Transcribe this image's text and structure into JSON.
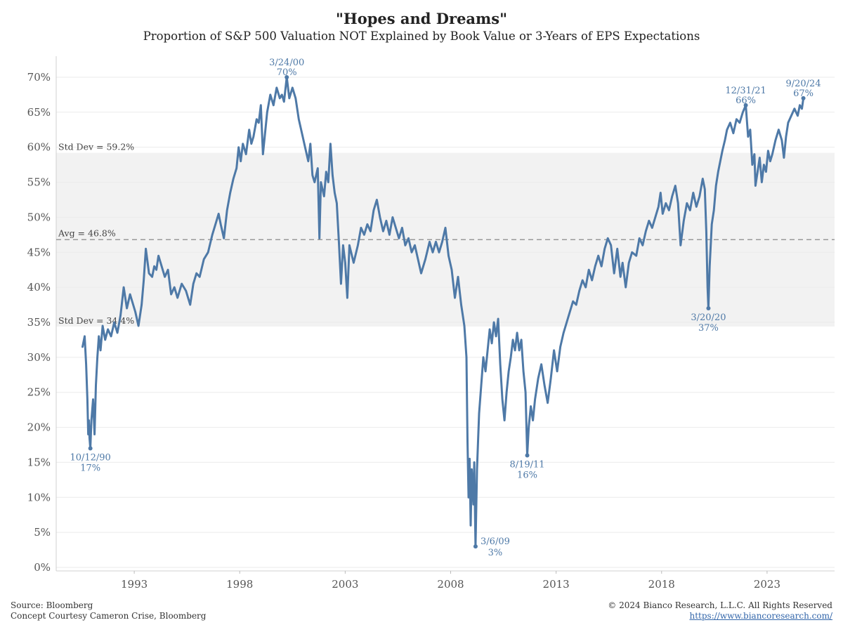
{
  "title": "\"Hopes and Dreams\"",
  "subtitle": "Proportion of S&P 500 Valuation NOT Explained by Book Value or 3-Years of EPS Expectations",
  "footer": {
    "source": "Source: Bloomberg",
    "concept": "Concept Courtesy Cameron Crise, Bloomberg",
    "copyright": "© 2024 Bianco Research, L.L.C. All Rights Reserved",
    "url": "https://www.biancoresearch.com/"
  },
  "chart_data": {
    "type": "line",
    "title": "\"Hopes and Dreams\"",
    "subtitle": "Proportion of S&P 500 Valuation NOT Explained by Book Value or 3-Years of EPS Expectations",
    "x_ticks": [
      1993,
      1998,
      2003,
      2008,
      2013,
      2018,
      2023
    ],
    "xlim": [
      1989.3,
      2026.2
    ],
    "y_ticks": [
      0,
      5,
      10,
      15,
      20,
      25,
      30,
      35,
      40,
      45,
      50,
      55,
      60,
      65,
      70
    ],
    "y_tick_labels": [
      "0%",
      "5%",
      "10%",
      "15%",
      "20%",
      "25%",
      "30%",
      "35%",
      "40%",
      "45%",
      "50%",
      "55%",
      "60%",
      "65%",
      "70%"
    ],
    "ylim": [
      -0.5,
      72
    ],
    "grid": true,
    "colors": {
      "line": "#4e79a7",
      "band": "#f2f2f2",
      "avg_line": "#999999",
      "annotation": "#4e79a7"
    },
    "reference": {
      "avg": {
        "value": 46.8,
        "label": "Avg = 46.8%"
      },
      "std_upper": {
        "value": 59.2,
        "label": "Std Dev = 59.2%"
      },
      "std_lower": {
        "value": 34.4,
        "label": "Std Dev = 34.4%"
      }
    },
    "series": [
      {
        "values": [
          [
            1990.55,
            31.5
          ],
          [
            1990.65,
            33.0
          ],
          [
            1990.72,
            29.0
          ],
          [
            1990.78,
            24.0
          ],
          [
            1990.82,
            19.0
          ],
          [
            1990.85,
            21.0
          ],
          [
            1990.88,
            18.5
          ],
          [
            1990.92,
            17.0
          ],
          [
            1990.97,
            21.0
          ],
          [
            1991.05,
            24.0
          ],
          [
            1991.12,
            19.0
          ],
          [
            1991.18,
            26.0
          ],
          [
            1991.25,
            30.0
          ],
          [
            1991.32,
            33.0
          ],
          [
            1991.4,
            31.0
          ],
          [
            1991.5,
            34.5
          ],
          [
            1991.62,
            32.5
          ],
          [
            1991.75,
            34.0
          ],
          [
            1991.9,
            33.0
          ],
          [
            1992.05,
            35.0
          ],
          [
            1992.2,
            33.5
          ],
          [
            1992.35,
            36.0
          ],
          [
            1992.5,
            40.0
          ],
          [
            1992.65,
            37.0
          ],
          [
            1992.8,
            39.0
          ],
          [
            1992.95,
            37.5
          ],
          [
            1993.05,
            36.5
          ],
          [
            1993.2,
            34.5
          ],
          [
            1993.35,
            37.5
          ],
          [
            1993.45,
            41.0
          ],
          [
            1993.55,
            45.5
          ],
          [
            1993.7,
            42.0
          ],
          [
            1993.85,
            41.5
          ],
          [
            1993.95,
            43.0
          ],
          [
            1994.05,
            42.5
          ],
          [
            1994.15,
            44.5
          ],
          [
            1994.3,
            43.0
          ],
          [
            1994.45,
            41.5
          ],
          [
            1994.6,
            42.5
          ],
          [
            1994.75,
            39.0
          ],
          [
            1994.9,
            40.0
          ],
          [
            1995.05,
            38.5
          ],
          [
            1995.25,
            40.5
          ],
          [
            1995.45,
            39.5
          ],
          [
            1995.65,
            37.5
          ],
          [
            1995.8,
            40.5
          ],
          [
            1995.95,
            42.0
          ],
          [
            1996.1,
            41.5
          ],
          [
            1996.3,
            44.0
          ],
          [
            1996.5,
            45.0
          ],
          [
            1996.7,
            47.5
          ],
          [
            1996.85,
            49.0
          ],
          [
            1997.0,
            50.5
          ],
          [
            1997.1,
            49.0
          ],
          [
            1997.25,
            47.0
          ],
          [
            1997.4,
            51.0
          ],
          [
            1997.55,
            53.5
          ],
          [
            1997.7,
            55.5
          ],
          [
            1997.85,
            57.0
          ],
          [
            1997.95,
            60.0
          ],
          [
            1998.05,
            58.0
          ],
          [
            1998.15,
            60.5
          ],
          [
            1998.3,
            59.0
          ],
          [
            1998.45,
            62.5
          ],
          [
            1998.55,
            60.5
          ],
          [
            1998.65,
            61.5
          ],
          [
            1998.8,
            64.0
          ],
          [
            1998.9,
            63.5
          ],
          [
            1999.0,
            66.0
          ],
          [
            1999.1,
            59.0
          ],
          [
            1999.2,
            62.0
          ],
          [
            1999.3,
            65.0
          ],
          [
            1999.45,
            67.5
          ],
          [
            1999.6,
            66.0
          ],
          [
            1999.75,
            68.5
          ],
          [
            1999.9,
            67.0
          ],
          [
            2000.0,
            67.5
          ],
          [
            2000.1,
            66.5
          ],
          [
            2000.23,
            70.0
          ],
          [
            2000.35,
            67.0
          ],
          [
            2000.5,
            68.5
          ],
          [
            2000.65,
            67.0
          ],
          [
            2000.8,
            64.0
          ],
          [
            2000.95,
            62.0
          ],
          [
            2001.1,
            60.0
          ],
          [
            2001.25,
            58.0
          ],
          [
            2001.35,
            60.5
          ],
          [
            2001.45,
            56.0
          ],
          [
            2001.55,
            55.0
          ],
          [
            2001.7,
            57.0
          ],
          [
            2001.78,
            47.0
          ],
          [
            2001.85,
            55.0
          ],
          [
            2002.0,
            53.0
          ],
          [
            2002.1,
            56.5
          ],
          [
            2002.2,
            55.0
          ],
          [
            2002.3,
            60.5
          ],
          [
            2002.4,
            56.0
          ],
          [
            2002.5,
            53.5
          ],
          [
            2002.6,
            52.0
          ],
          [
            2002.7,
            46.5
          ],
          [
            2002.8,
            40.5
          ],
          [
            2002.9,
            46.0
          ],
          [
            2003.0,
            43.5
          ],
          [
            2003.1,
            38.5
          ],
          [
            2003.2,
            46.0
          ],
          [
            2003.4,
            43.5
          ],
          [
            2003.6,
            46.0
          ],
          [
            2003.75,
            48.5
          ],
          [
            2003.9,
            47.5
          ],
          [
            2004.05,
            49.0
          ],
          [
            2004.2,
            48.0
          ],
          [
            2004.35,
            51.0
          ],
          [
            2004.5,
            52.5
          ],
          [
            2004.65,
            50.0
          ],
          [
            2004.8,
            48.0
          ],
          [
            2004.95,
            49.5
          ],
          [
            2005.1,
            47.5
          ],
          [
            2005.25,
            50.0
          ],
          [
            2005.4,
            48.5
          ],
          [
            2005.55,
            47.0
          ],
          [
            2005.7,
            48.5
          ],
          [
            2005.85,
            46.0
          ],
          [
            2006.0,
            47.0
          ],
          [
            2006.15,
            45.0
          ],
          [
            2006.3,
            46.0
          ],
          [
            2006.45,
            44.0
          ],
          [
            2006.6,
            42.0
          ],
          [
            2006.8,
            44.0
          ],
          [
            2007.0,
            46.5
          ],
          [
            2007.15,
            45.0
          ],
          [
            2007.3,
            46.5
          ],
          [
            2007.45,
            45.0
          ],
          [
            2007.6,
            46.5
          ],
          [
            2007.75,
            48.5
          ],
          [
            2007.9,
            44.5
          ],
          [
            2008.05,
            42.5
          ],
          [
            2008.2,
            38.5
          ],
          [
            2008.35,
            41.5
          ],
          [
            2008.5,
            37.5
          ],
          [
            2008.65,
            34.5
          ],
          [
            2008.75,
            30.0
          ],
          [
            2008.8,
            18.0
          ],
          [
            2008.85,
            10.0
          ],
          [
            2008.9,
            15.5
          ],
          [
            2008.95,
            6.0
          ],
          [
            2009.0,
            14.0
          ],
          [
            2009.08,
            9.0
          ],
          [
            2009.12,
            15.0
          ],
          [
            2009.18,
            3.0
          ],
          [
            2009.25,
            14.0
          ],
          [
            2009.35,
            22.0
          ],
          [
            2009.45,
            26.0
          ],
          [
            2009.55,
            30.0
          ],
          [
            2009.65,
            28.0
          ],
          [
            2009.75,
            31.0
          ],
          [
            2009.85,
            34.0
          ],
          [
            2009.95,
            32.0
          ],
          [
            2010.05,
            35.0
          ],
          [
            2010.15,
            33.0
          ],
          [
            2010.25,
            35.5
          ],
          [
            2010.35,
            29.0
          ],
          [
            2010.45,
            24.0
          ],
          [
            2010.55,
            21.0
          ],
          [
            2010.65,
            25.0
          ],
          [
            2010.75,
            28.0
          ],
          [
            2010.85,
            30.0
          ],
          [
            2010.95,
            32.5
          ],
          [
            2011.05,
            31.0
          ],
          [
            2011.15,
            33.5
          ],
          [
            2011.25,
            31.0
          ],
          [
            2011.35,
            32.5
          ],
          [
            2011.45,
            28.0
          ],
          [
            2011.55,
            25.0
          ],
          [
            2011.63,
            16.0
          ],
          [
            2011.7,
            20.0
          ],
          [
            2011.8,
            23.0
          ],
          [
            2011.9,
            21.0
          ],
          [
            2012.0,
            24.0
          ],
          [
            2012.15,
            27.0
          ],
          [
            2012.3,
            29.0
          ],
          [
            2012.45,
            26.0
          ],
          [
            2012.6,
            23.5
          ],
          [
            2012.75,
            27.0
          ],
          [
            2012.9,
            31.0
          ],
          [
            2013.05,
            28.0
          ],
          [
            2013.2,
            31.5
          ],
          [
            2013.35,
            33.5
          ],
          [
            2013.5,
            35.0
          ],
          [
            2013.65,
            36.5
          ],
          [
            2013.8,
            38.0
          ],
          [
            2013.95,
            37.5
          ],
          [
            2014.1,
            39.5
          ],
          [
            2014.25,
            41.0
          ],
          [
            2014.4,
            40.0
          ],
          [
            2014.55,
            42.5
          ],
          [
            2014.7,
            41.0
          ],
          [
            2014.85,
            43.0
          ],
          [
            2015.0,
            44.5
          ],
          [
            2015.15,
            43.0
          ],
          [
            2015.3,
            45.5
          ],
          [
            2015.45,
            47.0
          ],
          [
            2015.6,
            46.0
          ],
          [
            2015.75,
            42.0
          ],
          [
            2015.9,
            45.5
          ],
          [
            2016.05,
            41.5
          ],
          [
            2016.15,
            43.5
          ],
          [
            2016.3,
            40.0
          ],
          [
            2016.45,
            43.5
          ],
          [
            2016.6,
            45.0
          ],
          [
            2016.8,
            44.5
          ],
          [
            2016.95,
            47.0
          ],
          [
            2017.1,
            46.0
          ],
          [
            2017.25,
            48.0
          ],
          [
            2017.4,
            49.5
          ],
          [
            2017.55,
            48.5
          ],
          [
            2017.7,
            50.0
          ],
          [
            2017.85,
            51.5
          ],
          [
            2017.95,
            53.5
          ],
          [
            2018.05,
            50.5
          ],
          [
            2018.2,
            52.0
          ],
          [
            2018.35,
            51.0
          ],
          [
            2018.5,
            53.0
          ],
          [
            2018.65,
            54.5
          ],
          [
            2018.78,
            52.0
          ],
          [
            2018.9,
            46.0
          ],
          [
            2019.05,
            49.5
          ],
          [
            2019.2,
            52.0
          ],
          [
            2019.35,
            51.0
          ],
          [
            2019.5,
            53.5
          ],
          [
            2019.65,
            51.5
          ],
          [
            2019.8,
            53.0
          ],
          [
            2019.95,
            55.5
          ],
          [
            2020.05,
            54.0
          ],
          [
            2020.12,
            48.0
          ],
          [
            2020.18,
            40.0
          ],
          [
            2020.22,
            37.0
          ],
          [
            2020.28,
            43.0
          ],
          [
            2020.38,
            49.0
          ],
          [
            2020.48,
            51.0
          ],
          [
            2020.58,
            54.5
          ],
          [
            2020.68,
            56.5
          ],
          [
            2020.78,
            58.0
          ],
          [
            2020.88,
            59.5
          ],
          [
            2021.0,
            61.0
          ],
          [
            2021.1,
            62.5
          ],
          [
            2021.25,
            63.5
          ],
          [
            2021.4,
            62.0
          ],
          [
            2021.55,
            64.0
          ],
          [
            2021.7,
            63.5
          ],
          [
            2021.85,
            65.0
          ],
          [
            2021.99,
            66.0
          ],
          [
            2022.1,
            61.5
          ],
          [
            2022.2,
            62.5
          ],
          [
            2022.3,
            57.5
          ],
          [
            2022.4,
            59.0
          ],
          [
            2022.45,
            54.5
          ],
          [
            2022.55,
            56.5
          ],
          [
            2022.65,
            58.5
          ],
          [
            2022.75,
            55.0
          ],
          [
            2022.85,
            57.5
          ],
          [
            2022.95,
            56.5
          ],
          [
            2023.05,
            59.5
          ],
          [
            2023.15,
            58.0
          ],
          [
            2023.25,
            59.0
          ],
          [
            2023.4,
            61.0
          ],
          [
            2023.55,
            62.5
          ],
          [
            2023.7,
            61.0
          ],
          [
            2023.8,
            58.5
          ],
          [
            2023.9,
            61.5
          ],
          [
            2024.0,
            63.5
          ],
          [
            2024.15,
            64.5
          ],
          [
            2024.3,
            65.5
          ],
          [
            2024.45,
            64.5
          ],
          [
            2024.55,
            66.0
          ],
          [
            2024.65,
            65.5
          ],
          [
            2024.72,
            67.0
          ]
        ]
      }
    ],
    "annotations": [
      {
        "x": 1990.92,
        "y": 17.0,
        "date": "10/12/90",
        "pct": "17%",
        "pos": "below"
      },
      {
        "x": 2000.23,
        "y": 70.0,
        "date": "3/24/00",
        "pct": "70%",
        "pos": "above"
      },
      {
        "x": 2009.18,
        "y": 3.0,
        "date": "3/6/09",
        "pct": "3%",
        "pos": "right"
      },
      {
        "x": 2011.63,
        "y": 16.0,
        "date": "8/19/11",
        "pct": "16%",
        "pos": "below"
      },
      {
        "x": 2020.22,
        "y": 37.0,
        "date": "3/20/20",
        "pct": "37%",
        "pos": "below"
      },
      {
        "x": 2021.99,
        "y": 66.0,
        "date": "12/31/21",
        "pct": "66%",
        "pos": "above"
      },
      {
        "x": 2024.72,
        "y": 67.0,
        "date": "9/20/24",
        "pct": "67%",
        "pos": "above"
      }
    ]
  }
}
